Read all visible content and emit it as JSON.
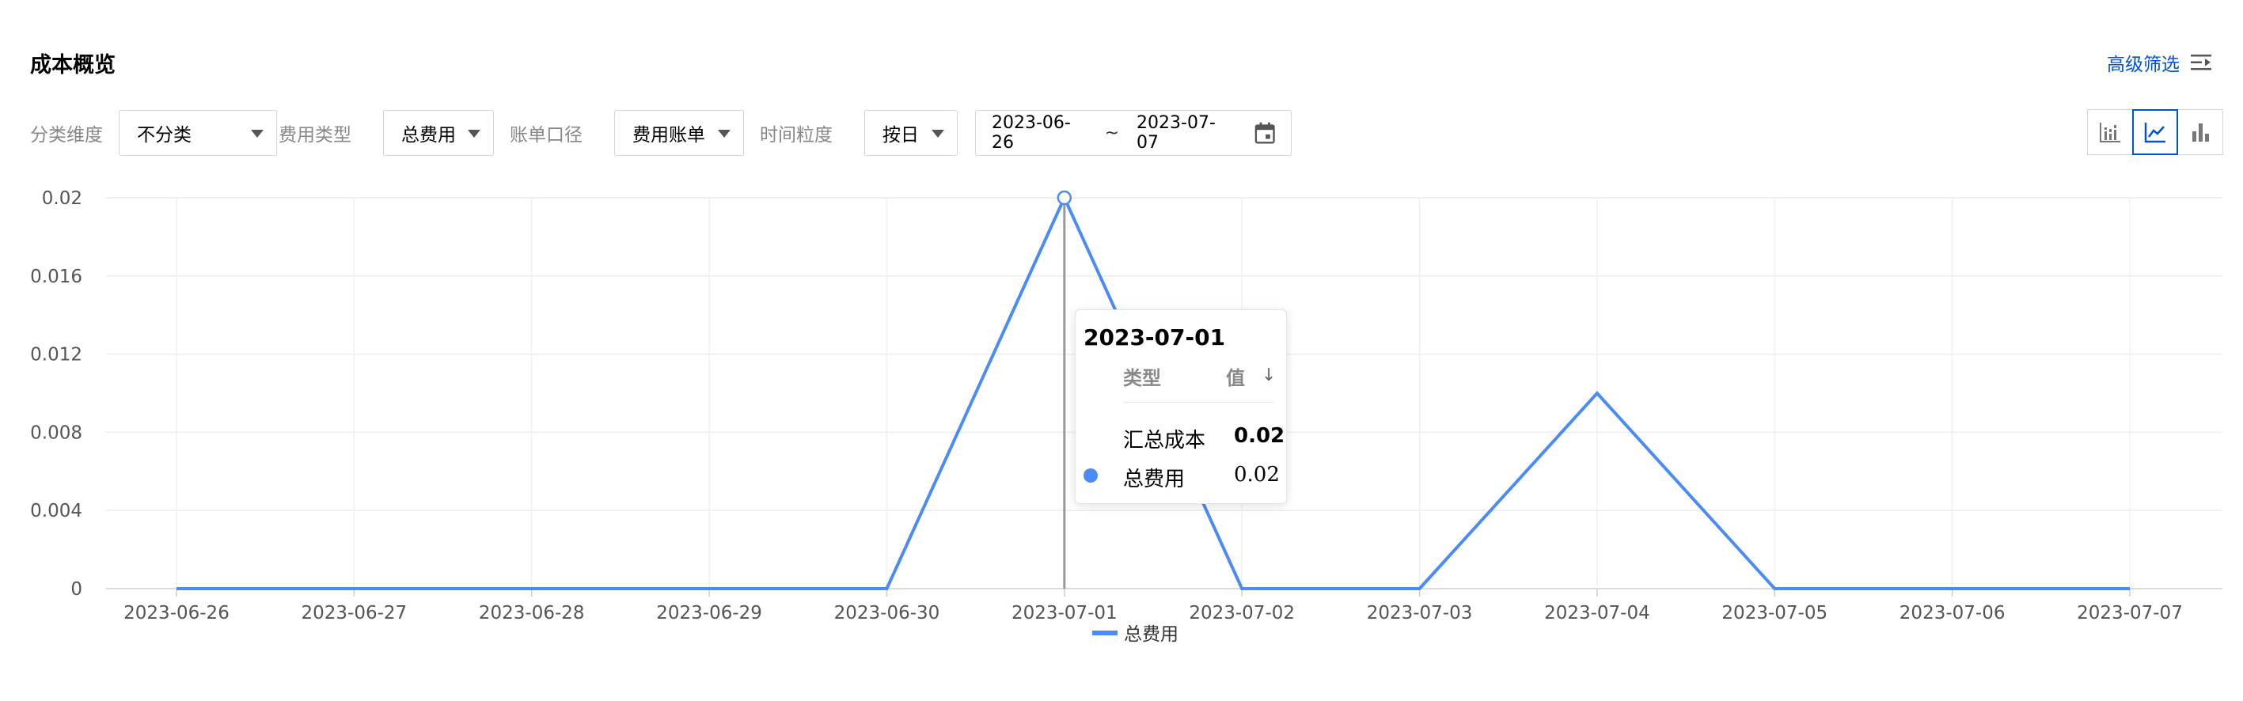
{
  "header": {
    "title": "成本概览",
    "advanced_filter_label": "高级筛选"
  },
  "filters": {
    "category_label": "分类维度",
    "category_value": "不分类",
    "fee_type_label": "费用类型",
    "fee_type_value": "总费用",
    "bill_basis_label": "账单口径",
    "bill_basis_value": "费用账单",
    "granularity_label": "时间粒度",
    "granularity_value": "按日",
    "date_start": "2023-06-26",
    "date_sep": "~",
    "date_end": "2023-07-07"
  },
  "view_toggle": {
    "options": [
      "stacked-bar-icon",
      "line-chart-icon",
      "bar-chart-icon"
    ],
    "active": "line-chart-icon"
  },
  "chart_data": {
    "type": "line",
    "x": [
      "2023-06-26",
      "2023-06-27",
      "2023-06-28",
      "2023-06-29",
      "2023-06-30",
      "2023-07-01",
      "2023-07-02",
      "2023-07-03",
      "2023-07-04",
      "2023-07-05",
      "2023-07-06",
      "2023-07-07"
    ],
    "series": [
      {
        "name": "总费用",
        "color": "#4b8bf5",
        "values": [
          0,
          0,
          0,
          0,
          0,
          0.02,
          0,
          0,
          0.01,
          0,
          0,
          0
        ]
      }
    ],
    "y_ticks": [
      "0",
      "0.004",
      "0.008",
      "0.012",
      "0.016",
      "0.02"
    ],
    "ylim": [
      0,
      0.02
    ],
    "grid": true,
    "legend": "bottom-center",
    "highlighted_x": "2023-07-01"
  },
  "tooltip": {
    "date": "2023-07-01",
    "col_type": "类型",
    "col_value": "值",
    "sort_icon": "↓",
    "rows": [
      {
        "name": "汇总成本",
        "value": "0.02",
        "bold": true
      },
      {
        "name": "总费用",
        "value": "0.02",
        "color": "#4b8bf5"
      }
    ]
  }
}
